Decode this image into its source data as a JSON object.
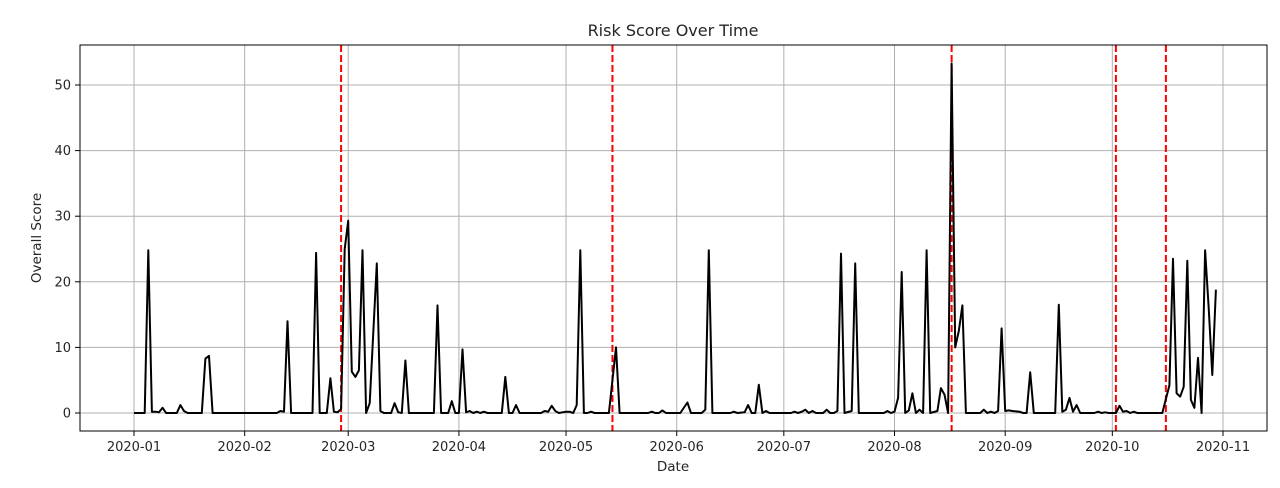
{
  "chart_data": {
    "type": "line",
    "title": "Risk Score Over Time",
    "xlabel": "Date",
    "ylabel": "Overall Score",
    "grid": true,
    "legend": null,
    "xlim": [
      "2019-12-17",
      "2020-11-14"
    ],
    "ylim": [
      -2.8,
      56
    ],
    "x_ticks": [
      "2020-01",
      "2020-02",
      "2020-03",
      "2020-04",
      "2020-05",
      "2020-06",
      "2020-07",
      "2020-08",
      "2020-09",
      "2020-10",
      "2020-11"
    ],
    "y_ticks": [
      0,
      10,
      20,
      30,
      40,
      50
    ],
    "line_color": "#000000",
    "vline_color": "#ff0000",
    "vlines": [
      "2020-02-28",
      "2020-05-14",
      "2020-08-17",
      "2020-10-02",
      "2020-10-16"
    ],
    "series": [
      {
        "name": "Overall Score",
        "points": [
          [
            "2020-01-01",
            0
          ],
          [
            "2020-01-04",
            0
          ],
          [
            "2020-01-05",
            24.8
          ],
          [
            "2020-01-06",
            0.2
          ],
          [
            "2020-01-07",
            0.2
          ],
          [
            "2020-01-08",
            0.1
          ],
          [
            "2020-01-09",
            0.8
          ],
          [
            "2020-01-10",
            0
          ],
          [
            "2020-01-13",
            0
          ],
          [
            "2020-01-14",
            1.2
          ],
          [
            "2020-01-15",
            0.3
          ],
          [
            "2020-01-16",
            0
          ],
          [
            "2020-01-20",
            0
          ],
          [
            "2020-01-21",
            8.3
          ],
          [
            "2020-01-22",
            8.7
          ],
          [
            "2020-01-23",
            0
          ],
          [
            "2020-02-10",
            0
          ],
          [
            "2020-02-11",
            0.3
          ],
          [
            "2020-02-12",
            0.2
          ],
          [
            "2020-02-13",
            14
          ],
          [
            "2020-02-14",
            0
          ],
          [
            "2020-02-20",
            0
          ],
          [
            "2020-02-21",
            24.4
          ],
          [
            "2020-02-22",
            0
          ],
          [
            "2020-02-24",
            0
          ],
          [
            "2020-02-25",
            5.3
          ],
          [
            "2020-02-26",
            0.2
          ],
          [
            "2020-02-27",
            0.1
          ],
          [
            "2020-02-28",
            0.6
          ],
          [
            "2020-02-29",
            25
          ],
          [
            "2020-03-01",
            29.3
          ],
          [
            "2020-03-02",
            6.3
          ],
          [
            "2020-03-03",
            5.5
          ],
          [
            "2020-03-04",
            6.5
          ],
          [
            "2020-03-05",
            24.8
          ],
          [
            "2020-03-06",
            0
          ],
          [
            "2020-03-07",
            1.5
          ],
          [
            "2020-03-09",
            22.8
          ],
          [
            "2020-03-10",
            0.3
          ],
          [
            "2020-03-11",
            0
          ],
          [
            "2020-03-13",
            0
          ],
          [
            "2020-03-14",
            1.5
          ],
          [
            "2020-03-15",
            0.1
          ],
          [
            "2020-03-16",
            0
          ],
          [
            "2020-03-17",
            8
          ],
          [
            "2020-03-18",
            0
          ],
          [
            "2020-03-25",
            0
          ],
          [
            "2020-03-26",
            16.4
          ],
          [
            "2020-03-27",
            0
          ],
          [
            "2020-03-29",
            0
          ],
          [
            "2020-03-30",
            1.8
          ],
          [
            "2020-03-31",
            0
          ],
          [
            "2020-04-01",
            0
          ],
          [
            "2020-04-02",
            9.7
          ],
          [
            "2020-04-03",
            0.1
          ],
          [
            "2020-04-04",
            0.3
          ],
          [
            "2020-04-05",
            0
          ],
          [
            "2020-04-06",
            0.2
          ],
          [
            "2020-04-07",
            0
          ],
          [
            "2020-04-08",
            0.2
          ],
          [
            "2020-04-09",
            0
          ],
          [
            "2020-04-13",
            0
          ],
          [
            "2020-04-14",
            5.5
          ],
          [
            "2020-04-15",
            0
          ],
          [
            "2020-04-16",
            0
          ],
          [
            "2020-04-17",
            1.2
          ],
          [
            "2020-04-18",
            0
          ],
          [
            "2020-04-24",
            0
          ],
          [
            "2020-04-25",
            0.3
          ],
          [
            "2020-04-26",
            0.2
          ],
          [
            "2020-04-27",
            1.1
          ],
          [
            "2020-04-28",
            0.3
          ],
          [
            "2020-04-29",
            0
          ],
          [
            "2020-05-01",
            0.2
          ],
          [
            "2020-05-02",
            0.2
          ],
          [
            "2020-05-03",
            0
          ],
          [
            "2020-05-04",
            1.2
          ],
          [
            "2020-05-05",
            24.8
          ],
          [
            "2020-05-06",
            0
          ],
          [
            "2020-05-07",
            0
          ],
          [
            "2020-05-08",
            0.2
          ],
          [
            "2020-05-09",
            0
          ],
          [
            "2020-05-13",
            0
          ],
          [
            "2020-05-15",
            10
          ],
          [
            "2020-05-16",
            0
          ],
          [
            "2020-05-24",
            0
          ],
          [
            "2020-05-25",
            0.2
          ],
          [
            "2020-05-26",
            0
          ],
          [
            "2020-05-27",
            0
          ],
          [
            "2020-05-28",
            0.4
          ],
          [
            "2020-05-29",
            0
          ],
          [
            "2020-06-02",
            0
          ],
          [
            "2020-06-04",
            1.6
          ],
          [
            "2020-06-05",
            0
          ],
          [
            "2020-06-08",
            0
          ],
          [
            "2020-06-09",
            0.5
          ],
          [
            "2020-06-10",
            24.8
          ],
          [
            "2020-06-11",
            0
          ],
          [
            "2020-06-16",
            0
          ],
          [
            "2020-06-17",
            0.2
          ],
          [
            "2020-06-18",
            0
          ],
          [
            "2020-06-20",
            0.1
          ],
          [
            "2020-06-21",
            1.2
          ],
          [
            "2020-06-22",
            0
          ],
          [
            "2020-06-23",
            0
          ],
          [
            "2020-06-24",
            4.3
          ],
          [
            "2020-06-25",
            0
          ],
          [
            "2020-06-26",
            0.3
          ],
          [
            "2020-06-27",
            0
          ],
          [
            "2020-07-03",
            0
          ],
          [
            "2020-07-04",
            0.2
          ],
          [
            "2020-07-05",
            0
          ],
          [
            "2020-07-06",
            0.2
          ],
          [
            "2020-07-07",
            0.5
          ],
          [
            "2020-07-08",
            0
          ],
          [
            "2020-07-09",
            0.3
          ],
          [
            "2020-07-10",
            0
          ],
          [
            "2020-07-12",
            0
          ],
          [
            "2020-07-13",
            0.5
          ],
          [
            "2020-07-14",
            0
          ],
          [
            "2020-07-15",
            0
          ],
          [
            "2020-07-16",
            0.3
          ],
          [
            "2020-07-17",
            24.3
          ],
          [
            "2020-07-18",
            0
          ],
          [
            "2020-07-20",
            0.3
          ],
          [
            "2020-07-21",
            22.8
          ],
          [
            "2020-07-22",
            0
          ],
          [
            "2020-07-29",
            0
          ],
          [
            "2020-07-30",
            0.3
          ],
          [
            "2020-07-31",
            0
          ],
          [
            "2020-08-01",
            0.2
          ],
          [
            "2020-08-02",
            2.3
          ],
          [
            "2020-08-03",
            21.5
          ],
          [
            "2020-08-04",
            0
          ],
          [
            "2020-08-05",
            0.4
          ],
          [
            "2020-08-06",
            3
          ],
          [
            "2020-08-07",
            0
          ],
          [
            "2020-08-08",
            0.5
          ],
          [
            "2020-08-09",
            0
          ],
          [
            "2020-08-10",
            24.8
          ],
          [
            "2020-08-11",
            0
          ],
          [
            "2020-08-13",
            0.3
          ],
          [
            "2020-08-14",
            3.8
          ],
          [
            "2020-08-15",
            2.8
          ],
          [
            "2020-08-16",
            0
          ],
          [
            "2020-08-17",
            53.3
          ],
          [
            "2020-08-18",
            10
          ],
          [
            "2020-08-19",
            12.5
          ],
          [
            "2020-08-20",
            16.4
          ],
          [
            "2020-08-21",
            0
          ],
          [
            "2020-08-25",
            0
          ],
          [
            "2020-08-26",
            0.5
          ],
          [
            "2020-08-27",
            0
          ],
          [
            "2020-08-28",
            0.2
          ],
          [
            "2020-08-29",
            0
          ],
          [
            "2020-08-30",
            0.3
          ],
          [
            "2020-08-31",
            12.9
          ],
          [
            "2020-09-01",
            0.3
          ],
          [
            "2020-09-02",
            0.4
          ],
          [
            "2020-09-03",
            0.3
          ],
          [
            "2020-09-05",
            0.2
          ],
          [
            "2020-09-06",
            0
          ],
          [
            "2020-09-07",
            0
          ],
          [
            "2020-09-08",
            6.2
          ],
          [
            "2020-09-09",
            0
          ],
          [
            "2020-09-15",
            0
          ],
          [
            "2020-09-16",
            16.5
          ],
          [
            "2020-09-17",
            0.2
          ],
          [
            "2020-09-18",
            0.5
          ],
          [
            "2020-09-19",
            2.3
          ],
          [
            "2020-09-20",
            0.2
          ],
          [
            "2020-09-21",
            1.2
          ],
          [
            "2020-09-22",
            0
          ],
          [
            "2020-09-26",
            0
          ],
          [
            "2020-09-27",
            0.2
          ],
          [
            "2020-09-28",
            0
          ],
          [
            "2020-09-29",
            0.1
          ],
          [
            "2020-09-30",
            0
          ],
          [
            "2020-10-02",
            0
          ],
          [
            "2020-10-03",
            1.1
          ],
          [
            "2020-10-04",
            0.2
          ],
          [
            "2020-10-05",
            0.3
          ],
          [
            "2020-10-06",
            0
          ],
          [
            "2020-10-07",
            0.2
          ],
          [
            "2020-10-08",
            0
          ],
          [
            "2020-10-15",
            0
          ],
          [
            "2020-10-17",
            4.2
          ],
          [
            "2020-10-18",
            23.5
          ],
          [
            "2020-10-19",
            3
          ],
          [
            "2020-10-20",
            2.5
          ],
          [
            "2020-10-21",
            4
          ],
          [
            "2020-10-22",
            23.2
          ],
          [
            "2020-10-23",
            2
          ],
          [
            "2020-10-24",
            0.8
          ],
          [
            "2020-10-25",
            8.4
          ],
          [
            "2020-10-26",
            0
          ],
          [
            "2020-10-27",
            24.8
          ],
          [
            "2020-10-28",
            16
          ],
          [
            "2020-10-29",
            5.8
          ],
          [
            "2020-10-30",
            18.8
          ]
        ]
      }
    ]
  }
}
